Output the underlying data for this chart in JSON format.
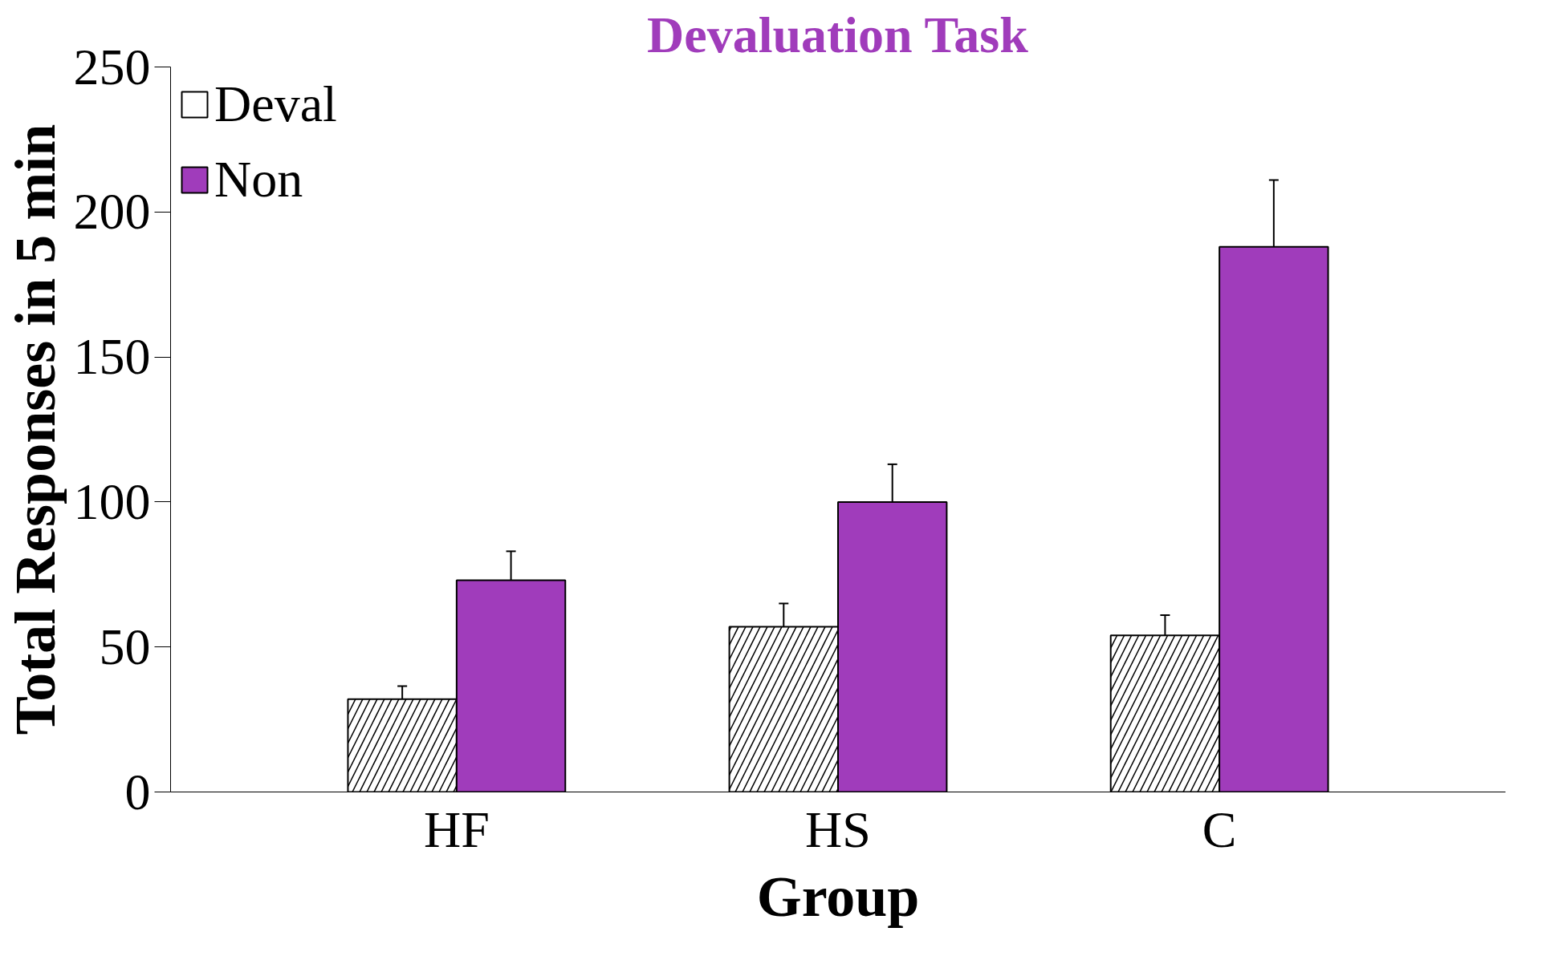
{
  "chart_data": {
    "type": "bar",
    "title": "Devaluation Task",
    "xlabel": "Group",
    "ylabel": "Total Responses in 5 min",
    "categories": [
      "HF",
      "HS",
      "C"
    ],
    "series": [
      {
        "name": "Deval",
        "color": "#ffffff",
        "values": [
          32,
          57,
          54
        ],
        "errors": [
          4.5,
          8,
          7
        ]
      },
      {
        "name": "Non",
        "color": "#a03cbb",
        "values": [
          73,
          100,
          188
        ],
        "errors": [
          10,
          13,
          23
        ]
      }
    ],
    "ylim": [
      0,
      250
    ],
    "yticks": [
      0,
      50,
      100,
      150,
      200,
      250
    ],
    "legend": "top left"
  }
}
